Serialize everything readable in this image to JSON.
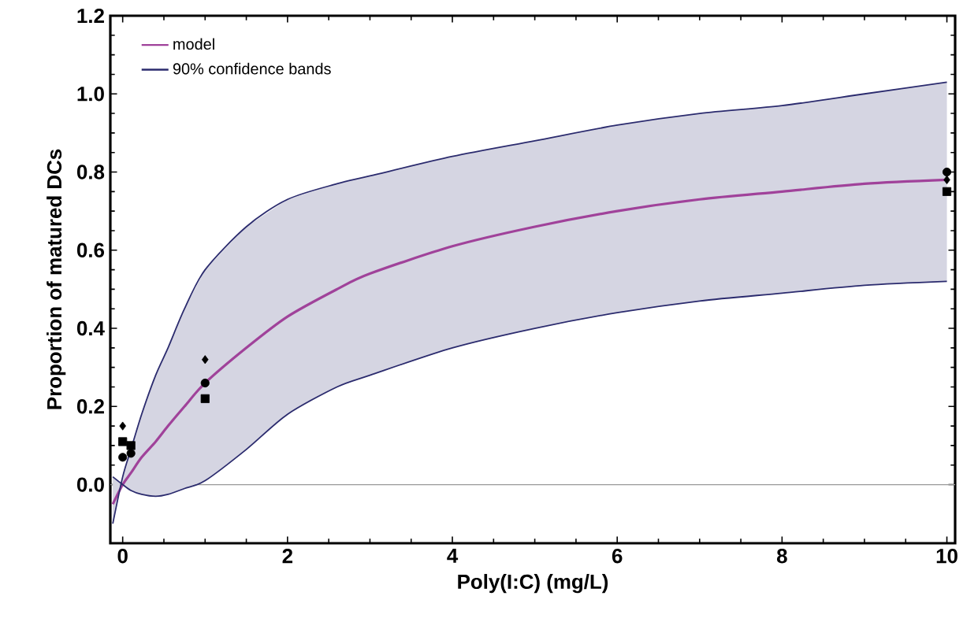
{
  "chart_data": {
    "type": "line",
    "xlabel": "Poly(I:C) (mg/L)",
    "ylabel": "Proportion of matured DCs",
    "xlim": [
      -0.15,
      10.1
    ],
    "ylim": [
      -0.15,
      1.2
    ],
    "xticks": [
      0,
      2,
      4,
      6,
      8,
      10
    ],
    "yticks": [
      {
        "value": 0,
        "label": "0.0"
      },
      0.2,
      0.4,
      0.6,
      0.8,
      {
        "value": 1,
        "label": "1.0"
      },
      1.2
    ],
    "legend": "top left",
    "grid": false,
    "ref_lines": [
      {
        "axis": "y",
        "value": 0,
        "color": "#999999"
      }
    ],
    "series": [
      {
        "name": "model",
        "color": "#a0429a",
        "x": [
          -0.12,
          0,
          0.1,
          0.23,
          0.4,
          0.55,
          0.75,
          1,
          1.5,
          2,
          2.6,
          3,
          4,
          5,
          6,
          7,
          8,
          9,
          10
        ],
        "values": [
          -0.05,
          0,
          0.03,
          0.07,
          0.11,
          0.15,
          0.2,
          0.26,
          0.35,
          0.43,
          0.5,
          0.54,
          0.61,
          0.66,
          0.7,
          0.73,
          0.75,
          0.77,
          0.78
        ],
        "lower": [
          0.02,
          0.0,
          -0.015,
          -0.025,
          -0.03,
          -0.025,
          -0.01,
          0.01,
          0.09,
          0.18,
          0.25,
          0.28,
          0.35,
          0.4,
          0.44,
          0.47,
          0.49,
          0.51,
          0.52
        ],
        "upper": [
          -0.1,
          0.02,
          0.09,
          0.18,
          0.28,
          0.35,
          0.45,
          0.55,
          0.66,
          0.73,
          0.77,
          0.79,
          0.84,
          0.88,
          0.92,
          0.95,
          0.97,
          1.0,
          1.03
        ]
      },
      {
        "name": "90% confidence bands",
        "color": "#2b2b6e",
        "x": [
          -0.12,
          0,
          0.1,
          0.23,
          0.4,
          0.55,
          0.75,
          1,
          1.5,
          2,
          2.6,
          3,
          4,
          5,
          6,
          7,
          8,
          9,
          10
        ],
        "values": [
          -0.1,
          0.02,
          0.09,
          0.18,
          0.28,
          0.35,
          0.45,
          0.55,
          0.66,
          0.73,
          0.77,
          0.79,
          0.84,
          0.88,
          0.92,
          0.95,
          0.97,
          1.0,
          1.03
        ]
      },
      {
        "color": "#2b2b6e",
        "x": [
          -0.12,
          0,
          0.1,
          0.23,
          0.4,
          0.55,
          0.75,
          1,
          1.5,
          2,
          2.6,
          3,
          4,
          5,
          6,
          7,
          8,
          9,
          10
        ],
        "values": [
          0.02,
          0.0,
          -0.015,
          -0.025,
          -0.03,
          -0.025,
          -0.01,
          0.01,
          0.09,
          0.18,
          0.25,
          0.28,
          0.35,
          0.4,
          0.44,
          0.47,
          0.49,
          0.51,
          0.52
        ]
      },
      {
        "type": "scatter",
        "marker": "circle",
        "color": "#000000",
        "x": [
          0,
          0.1,
          1,
          10
        ],
        "values": [
          0.07,
          0.08,
          0.26,
          0.8
        ]
      },
      {
        "type": "scatter",
        "marker": "square",
        "color": "#000000",
        "x": [
          0,
          0.1,
          1,
          10
        ],
        "values": [
          0.11,
          0.1,
          0.22,
          0.75
        ]
      },
      {
        "type": "scatter",
        "marker": "diamond",
        "color": "#000000",
        "x": [
          0,
          1,
          10
        ],
        "values": [
          0.15,
          0.32,
          0.78
        ]
      }
    ]
  }
}
